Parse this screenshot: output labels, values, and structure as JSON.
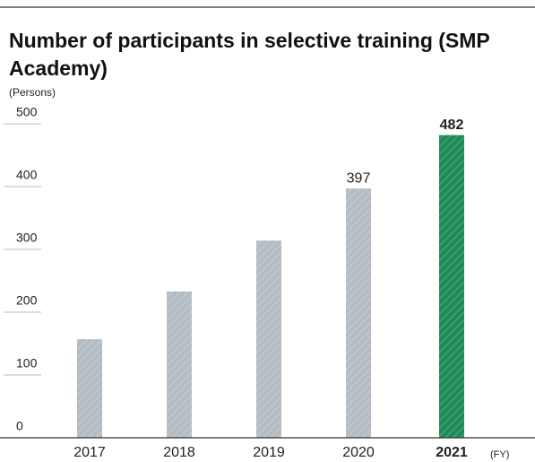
{
  "chart_data": {
    "type": "bar",
    "title": "Number of participants in selective training (SMP Academy)",
    "y_axis_label": "(Persons)",
    "x_axis_label": "(FY)",
    "categories": [
      "2017",
      "2018",
      "2019",
      "2020",
      "2021"
    ],
    "values": [
      157,
      233,
      314,
      397,
      482
    ],
    "value_labels": [
      null,
      null,
      null,
      "397",
      "482"
    ],
    "colors": [
      "#b4bcc4",
      "#b4bcc4",
      "#b4bcc4",
      "#b4bcc4",
      "#1e8a58"
    ],
    "highlight_index": 4,
    "ylim": [
      0,
      500
    ],
    "yticks": [
      0,
      100,
      200,
      300,
      400,
      500
    ]
  }
}
